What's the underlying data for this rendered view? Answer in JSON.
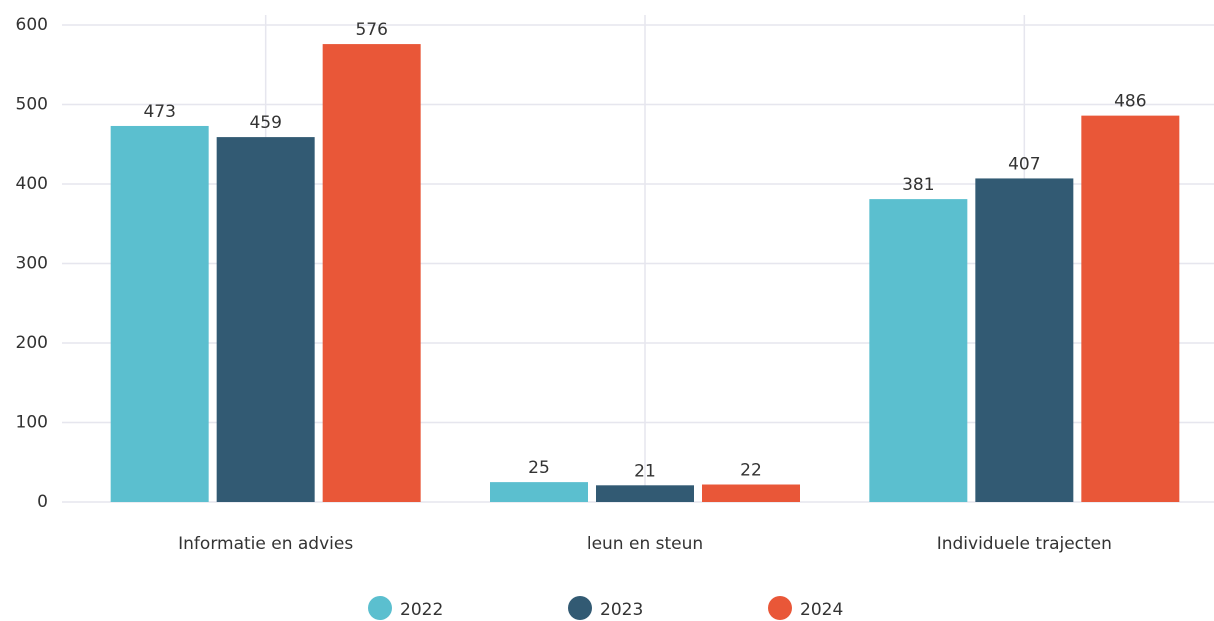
{
  "chart_data": {
    "type": "bar",
    "categories": [
      "Informatie en advies",
      "leun en steun",
      "Individuele trajecten"
    ],
    "series": [
      {
        "name": "2022",
        "color": "#5bbfcf",
        "values": [
          473,
          25,
          381
        ]
      },
      {
        "name": "2023",
        "color": "#325a73",
        "values": [
          459,
          21,
          407
        ]
      },
      {
        "name": "2024",
        "color": "#e95738",
        "values": [
          576,
          22,
          486
        ]
      }
    ],
    "ylim": [
      0,
      600
    ],
    "yticks": [
      0,
      100,
      200,
      300,
      400,
      500,
      600
    ],
    "grid": true,
    "legend": "bottom"
  }
}
